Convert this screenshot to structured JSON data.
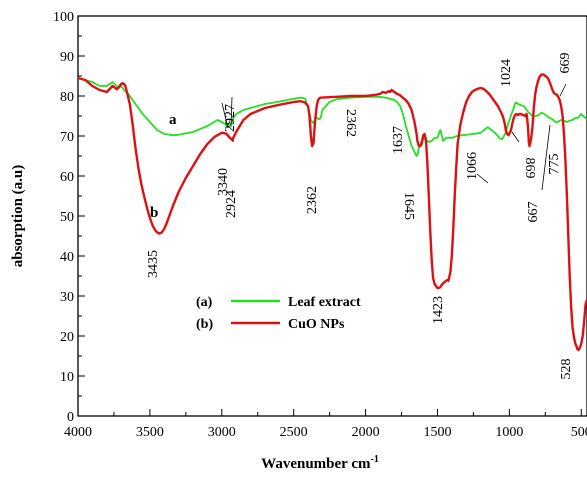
{
  "chart_data": {
    "type": "line",
    "xlabel": "Wavenumber cm",
    "xlabel_superscript": "-1",
    "ylabel": "absorption (a.u)",
    "xlim": [
      4000,
      460
    ],
    "ylim": [
      0,
      100
    ],
    "x_reversed": true,
    "x_ticks": [
      4000,
      3500,
      3000,
      2500,
      2000,
      1500,
      1000,
      500
    ],
    "y_ticks": [
      0,
      10,
      20,
      30,
      40,
      50,
      60,
      70,
      80,
      90,
      100
    ],
    "grid": false,
    "legend_position": "lower-center",
    "series": [
      {
        "name": "Leaf extract",
        "legend_key": "(a)",
        "letter": "a",
        "color": "#22e022",
        "x": [
          4000,
          3900,
          3850,
          3800,
          3760,
          3740,
          3720,
          3700,
          3680,
          3650,
          3600,
          3550,
          3500,
          3450,
          3400,
          3340,
          3300,
          3200,
          3100,
          3030,
          3000,
          2960,
          2940,
          2930,
          2927,
          2920,
          2900,
          2850,
          2800,
          2700,
          2600,
          2500,
          2450,
          2420,
          2400,
          2380,
          2370,
          2362,
          2355,
          2345,
          2335,
          2330,
          2320,
          2310,
          2300,
          2250,
          2200,
          2100,
          2000,
          1900,
          1850,
          1800,
          1780,
          1760,
          1740,
          1720,
          1700,
          1680,
          1660,
          1645,
          1637,
          1630,
          1600,
          1560,
          1540,
          1520,
          1500,
          1480,
          1460,
          1440,
          1420,
          1400,
          1380,
          1350,
          1300,
          1250,
          1200,
          1150,
          1100,
          1080,
          1066,
          1050,
          1030,
          1024,
          1010,
          990,
          970,
          960,
          950,
          940,
          920,
          900,
          880,
          869,
          850,
          830,
          800,
          775,
          760,
          740,
          720,
          700,
          680,
          669,
          660,
          640,
          620,
          600,
          580,
          560,
          540,
          520,
          500,
          480,
          460
        ],
        "y": [
          84.5,
          83.5,
          82.5,
          82.5,
          83.5,
          82.8,
          82,
          82.5,
          81.5,
          80.5,
          78,
          75.5,
          73.5,
          71.5,
          70.5,
          70.2,
          70.3,
          71,
          72.5,
          74,
          73.5,
          72.5,
          72.8,
          73.3,
          73.5,
          74.5,
          75.5,
          76.5,
          77,
          78,
          78.6,
          79.3,
          79.6,
          79.3,
          77,
          74,
          73.5,
          73.2,
          73.8,
          74.5,
          74.5,
          74.3,
          74.2,
          74.8,
          76.5,
          78.5,
          79.2,
          79.6,
          79.8,
          79.8,
          79.5,
          79,
          78.5,
          77.5,
          75.5,
          72.5,
          70,
          67.5,
          66,
          65,
          65.5,
          67,
          69.5,
          68.5,
          68.8,
          69.5,
          69.6,
          71.5,
          68.8,
          69.5,
          69.6,
          69.5,
          69.8,
          70.1,
          70.3,
          70.5,
          70.8,
          72.2,
          70.8,
          70,
          69.4,
          69.2,
          70.5,
          71,
          72.8,
          75,
          77,
          78.2,
          78.4,
          78,
          77.7,
          77.5,
          76.5,
          76,
          75.4,
          74.8,
          75.2,
          75.8,
          75.6,
          75,
          74.5,
          74.2,
          73.5,
          73.4,
          73.6,
          74,
          73.8,
          73.5,
          73.8,
          74,
          74.5,
          74.6,
          75.5,
          74.8,
          74.2
        ]
      },
      {
        "name": "CuO NPs",
        "legend_key": "(b)",
        "letter": "b",
        "color": "#dd1111",
        "x": [
          4000,
          3950,
          3900,
          3850,
          3800,
          3760,
          3730,
          3720,
          3700,
          3690,
          3680,
          3670,
          3660,
          3640,
          3620,
          3600,
          3580,
          3560,
          3540,
          3520,
          3500,
          3480,
          3460,
          3445,
          3435,
          3420,
          3400,
          3380,
          3360,
          3340,
          3300,
          3250,
          3200,
          3150,
          3100,
          3050,
          3000,
          2970,
          2950,
          2940,
          2930,
          2924,
          2920,
          2900,
          2870,
          2850,
          2800,
          2700,
          2600,
          2500,
          2450,
          2420,
          2400,
          2390,
          2380,
          2372,
          2365,
          2362,
          2358,
          2350,
          2340,
          2330,
          2320,
          2310,
          2300,
          2200,
          2100,
          2000,
          1950,
          1900,
          1880,
          1860,
          1840,
          1830,
          1820,
          1800,
          1780,
          1760,
          1740,
          1720,
          1700,
          1680,
          1660,
          1645,
          1640,
          1637,
          1630,
          1620,
          1610,
          1600,
          1590,
          1580,
          1570,
          1560,
          1550,
          1540,
          1530,
          1520,
          1510,
          1500,
          1490,
          1480,
          1470,
          1460,
          1450,
          1440,
          1430,
          1423,
          1410,
          1400,
          1390,
          1380,
          1370,
          1360,
          1340,
          1320,
          1300,
          1280,
          1260,
          1240,
          1220,
          1200,
          1180,
          1160,
          1140,
          1120,
          1100,
          1080,
          1066,
          1050,
          1040,
          1030,
          1024,
          1015,
          1005,
          1000,
          990,
          980,
          970,
          960,
          950,
          940,
          930,
          920,
          910,
          900,
          890,
          880,
          875,
          869,
          865,
          860,
          850,
          840,
          830,
          820,
          810,
          800,
          790,
          780,
          775,
          770,
          760,
          750,
          740,
          730,
          720,
          710,
          700,
          690,
          680,
          670,
          669,
          660,
          650,
          640,
          630,
          620,
          610,
          600,
          590,
          580,
          570,
          560,
          550,
          540,
          530,
          528,
          520,
          510,
          500,
          490,
          480,
          470,
          460
        ],
        "y": [
          84.5,
          84,
          82.5,
          81.5,
          81,
          82.5,
          81.7,
          82,
          83,
          83.2,
          83,
          82.5,
          81,
          78,
          73,
          67,
          62,
          58,
          55,
          52,
          49.5,
          47.5,
          46.3,
          45.8,
          45.6,
          45.8,
          46.8,
          48.5,
          50.5,
          52.5,
          56,
          59.5,
          62.5,
          65.5,
          68,
          69.8,
          70.8,
          70.6,
          69.8,
          69.4,
          69.2,
          68.8,
          69.6,
          71,
          72.8,
          74,
          75.5,
          77,
          77.8,
          78.5,
          78.7,
          78.3,
          77.5,
          75,
          70,
          67.5,
          68,
          68.2,
          70.5,
          74,
          77.5,
          79,
          79.5,
          79.6,
          79.6,
          79.8,
          80,
          80,
          80.2,
          80.5,
          81,
          80.8,
          81.2,
          81,
          81.5,
          81,
          80.5,
          80.2,
          79.5,
          79,
          78,
          76.5,
          73.5,
          70.5,
          68.8,
          68.5,
          67.5,
          67.5,
          68,
          70,
          70.5,
          69,
          63,
          55,
          46,
          39,
          34.5,
          33,
          32.5,
          32,
          32,
          32.2,
          32.8,
          33.2,
          33.5,
          33.8,
          34,
          33.8,
          36,
          40,
          47,
          55,
          62,
          68,
          73,
          76,
          78.5,
          80,
          81,
          81.5,
          81.8,
          82,
          81.8,
          81.2,
          80.5,
          79.5,
          78.5,
          77.5,
          76.5,
          75.3,
          74.3,
          72.8,
          71.3,
          70.5,
          70.2,
          70.6,
          71.3,
          73,
          74.5,
          75.3,
          75.5,
          75.2,
          75.5,
          75.5,
          75.3,
          75.2,
          75,
          75.5,
          74,
          71.5,
          68.5,
          67.5,
          69,
          72,
          77,
          80.5,
          82.5,
          83.8,
          84.8,
          85.2,
          85.4,
          85.4,
          85.3,
          85,
          84.8,
          84.3,
          83.5,
          82.5,
          81.5,
          80.8,
          80.5,
          80.3,
          80.2,
          79.8,
          79,
          77.5,
          75,
          70.5,
          64,
          55,
          45,
          35,
          27,
          22,
          19.5,
          18,
          17.2,
          16.8,
          16.5,
          17,
          18,
          20,
          23.5,
          28,
          29
        ]
      }
    ],
    "annotations": [
      {
        "text": "3340",
        "color": "#000000"
      },
      {
        "text": "2927",
        "color": "#000000"
      },
      {
        "text": "3435",
        "color": "#000000"
      },
      {
        "text": "2924",
        "color": "#000000"
      },
      {
        "text": "2362",
        "color": "#000000"
      },
      {
        "text": "2362",
        "color": "#000000"
      },
      {
        "text": "1637",
        "color": "#000000"
      },
      {
        "text": "1645",
        "color": "#000000"
      },
      {
        "text": "1423",
        "color": "#000000"
      },
      {
        "text": "1066",
        "color": "#000000"
      },
      {
        "text": "1024",
        "color": "#000000"
      },
      {
        "text": "869",
        "color": "#000000"
      },
      {
        "text": "775",
        "color": "#000000"
      },
      {
        "text": "667",
        "color": "#000000"
      },
      {
        "text": "669",
        "color": "#000000"
      },
      {
        "text": "528",
        "color": "#000000"
      }
    ]
  }
}
